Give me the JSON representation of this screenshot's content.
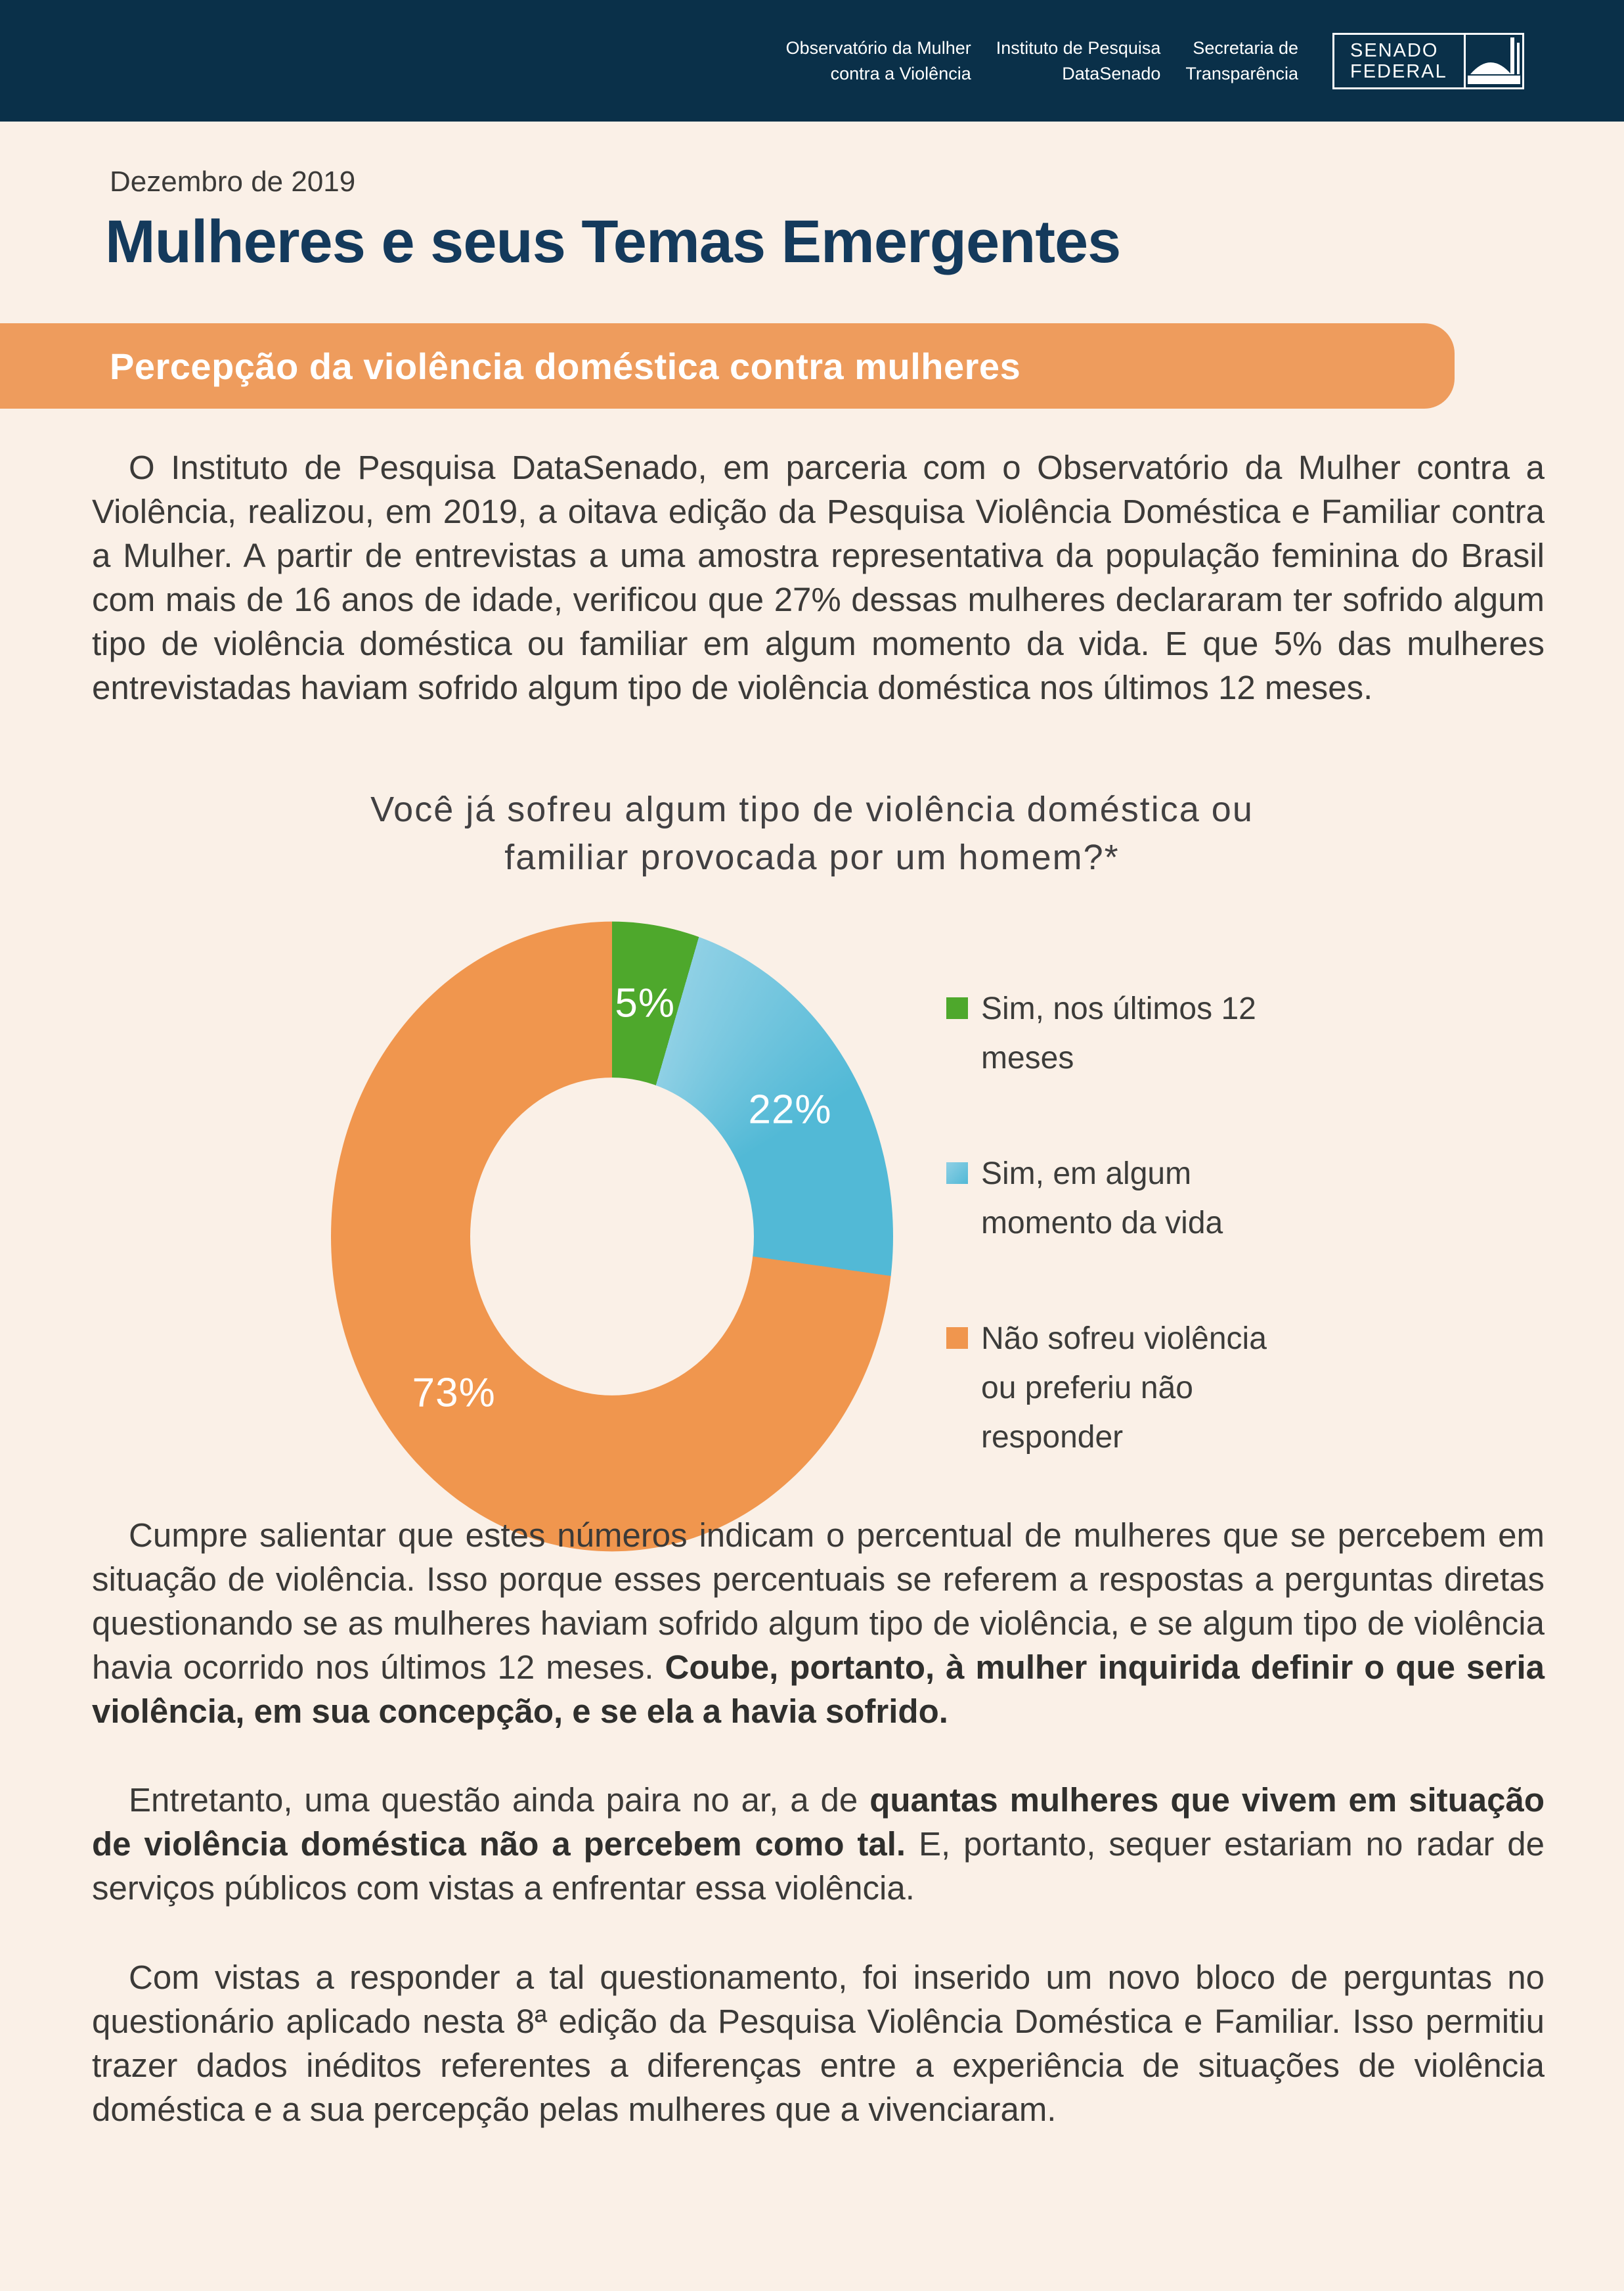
{
  "theme": {
    "cream": "#FAF0E7",
    "navy": "#0A3049",
    "title-navy": "#143A5C",
    "banner-orange": "#EE9C5D",
    "chart-text": "#414042",
    "text": "#3B3A38"
  },
  "header": {
    "org1": {
      "line1": "Observatório da Mulher",
      "line2": "contra a Violência"
    },
    "org2": {
      "line1": "Instituto de Pesquisa",
      "line2": "DataSenado"
    },
    "org3": {
      "line1": "Secretaria de",
      "line2": "Transparência"
    },
    "logo": {
      "line1": "SENADO",
      "line2": "FEDERAL"
    }
  },
  "masthead": {
    "date": "Dezembro de 2019",
    "title": "Mulheres e seus Temas Emergentes",
    "banner": "Percepção da violência doméstica contra mulheres"
  },
  "paragraphs": {
    "p1": "O Instituto de Pesquisa DataSenado, em parceria com o Observatório da Mulher contra a Violência, realizou, em 2019, a oitava edição da Pesquisa Violência Doméstica e Familiar contra a Mulher. A partir de entrevistas a uma amostra representativa da população feminina do Brasil com mais de 16 anos de idade, verificou que 27% dessas mulheres declararam ter sofrido algum tipo de violência doméstica ou familiar em algum momento da vida. E que 5% das mulheres entrevistadas haviam sofrido algum tipo de violência doméstica nos últimos 12 meses.",
    "p2": {
      "start": "Cumpre salientar que estes números indicam o percentual de mulheres que se percebem em situação de violência. Isso porque esses percentuais se referem a respostas a perguntas diretas questionando se as mulheres haviam sofrido algum tipo de violência, e se algum tipo de violência havia ocorrido nos últimos 12 meses. ",
      "bold": "Coube, portanto, à mulher inquirida definir o que seria violência, em sua concepção, e se ela a havia sofrido."
    },
    "p3": {
      "start": "Entretanto, uma questão ainda paira no ar, a de ",
      "bold": "quantas mulheres que vivem em situação de violência doméstica não a percebem como tal.",
      "end": " E, portanto, sequer estariam no radar de serviços públicos com vistas a enfrentar essa violência."
    },
    "p4": "Com vistas a responder a tal questionamento, foi inserido um novo bloco de perguntas no questionário aplicado nesta 8ª edição da Pesquisa Violência Doméstica e Familiar. Isso permitiu trazer dados inéditos referentes a diferenças entre a experiência de situações de violência doméstica e a sua percepção pelas mulheres que a vivenciaram."
  },
  "chart_data": {
    "type": "pie",
    "variant": "doughnut",
    "title": "Você já sofreu algum tipo de violência doméstica ou familiar provocada por um homem?*",
    "title_lines": [
      "Você já sofreu algum tipo de violência doméstica ou",
      "familiar provocada por um homem?*"
    ],
    "categories": [
      "Sim, nos últimos 12 meses",
      "Sim, em algum momento da vida",
      "Não sofreu violência ou preferiu não responder"
    ],
    "values": [
      5,
      22,
      73
    ],
    "slices": [
      {
        "label": "Sim, nos últimos 12 meses",
        "value": 5,
        "display": "5%",
        "color": "#4EA82C"
      },
      {
        "label": "Sim, em algum momento da vida",
        "value": 22,
        "display": "22%",
        "color": "#52B9D6",
        "color_light": "#8FD0E5"
      },
      {
        "label": "Não sofreu violência ou preferiu não responder",
        "value": 73,
        "display": "73%",
        "color": "#F0964E"
      }
    ],
    "legend_position": "right",
    "legend": [
      {
        "label": "Sim, nos últimos 12\nmeses"
      },
      {
        "label": "Sim, em algum\nmomento da vida"
      },
      {
        "label": "Não sofreu violência\nou preferiu não\nresponder"
      }
    ]
  }
}
